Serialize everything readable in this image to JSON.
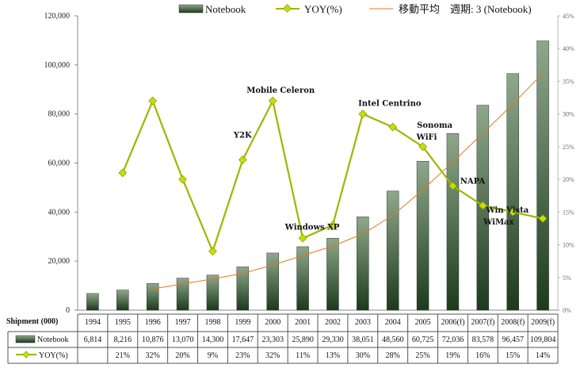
{
  "chart_data": {
    "type": "bar",
    "categories": [
      "1994",
      "1995",
      "1996",
      "1997",
      "1998",
      "1999",
      "2000",
      "2001",
      "2002",
      "2003",
      "2004",
      "2005",
      "2006(f)",
      "2007(f)",
      "2008(f)",
      "2009(f)"
    ],
    "series": [
      {
        "name": "Notebook",
        "type": "bar",
        "axis": "left",
        "values": [
          6814,
          8216,
          10876,
          13070,
          14300,
          17647,
          23303,
          25890,
          29330,
          38051,
          48560,
          60725,
          72036,
          83578,
          96457,
          109804
        ]
      },
      {
        "name": "YOY(%)",
        "type": "line",
        "axis": "right",
        "values": [
          null,
          21,
          32,
          20,
          9,
          23,
          32,
          11,
          13,
          30,
          28,
          25,
          19,
          16,
          15,
          14
        ]
      },
      {
        "name": "移動平均　週期: 3 (Notebook)",
        "type": "moving-average",
        "axis": "left",
        "period": 3
      }
    ],
    "yoy_labels": [
      "",
      "21%",
      "32%",
      "20%",
      "9%",
      "23%",
      "32%",
      "11%",
      "13%",
      "30%",
      "28%",
      "25%",
      "19%",
      "16%",
      "15%",
      "14%"
    ],
    "notebook_labels": [
      "6,814",
      "8,216",
      "10,876",
      "13,070",
      "14,300",
      "17,647",
      "23,303",
      "25,890",
      "29,330",
      "38,051",
      "48,560",
      "60,725",
      "72,036",
      "83,578",
      "96,457",
      "109,804"
    ],
    "ylim": [
      0,
      120000
    ],
    "y2lim": [
      0,
      45
    ],
    "yticks": [
      "0",
      "20,000",
      "40,000",
      "60,000",
      "80,000",
      "100,000",
      "120,000"
    ],
    "y2ticks": [
      "0%",
      "5%",
      "10%",
      "15%",
      "20%",
      "25%",
      "30%",
      "35%",
      "40%",
      "45%"
    ],
    "table_header": "Shipment (000)",
    "annotations": [
      {
        "text": "Y2K",
        "year": "1999"
      },
      {
        "text": "Mobile Celeron",
        "year": "2000"
      },
      {
        "text": "Windows XP",
        "year": "2001"
      },
      {
        "text": "Intel Centrino",
        "year": "2003"
      },
      {
        "text": "Sonoma",
        "year": "2005"
      },
      {
        "text": "WiFi",
        "year": "2005"
      },
      {
        "text": "NAPA",
        "year": "2006(f)"
      },
      {
        "text": "Win Vista",
        "year": "2007(f)"
      },
      {
        "text": "WiMax",
        "year": "2007(f)"
      }
    ],
    "legend_position": "top",
    "colors": {
      "bar_top": "#8fa88c",
      "bar_bottom": "#1c3a1c",
      "yoy": "#9ab800",
      "marker": "#c8dc00",
      "moving_avg": "#e87722"
    }
  }
}
